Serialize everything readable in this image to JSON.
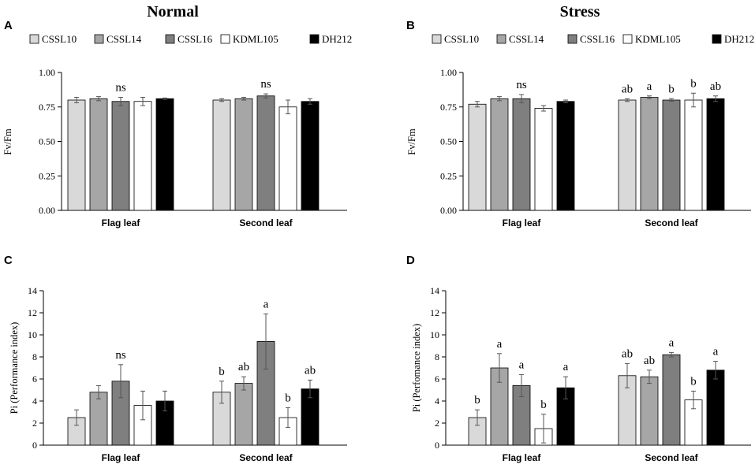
{
  "column_titles": [
    "Normal",
    "Stress"
  ],
  "legend": [
    {
      "name": "CSSL10",
      "color": "#d9d9d9"
    },
    {
      "name": "CSSL14",
      "color": "#a6a6a6"
    },
    {
      "name": "CSSL16",
      "color": "#7f7f7f"
    },
    {
      "name": "KDML105",
      "color": "#ffffff"
    },
    {
      "name": "DH212",
      "color": "#000000"
    }
  ],
  "chart_data": [
    {
      "panel": "A",
      "type": "bar",
      "title": "Normal",
      "ylabel": "Fv/Fm",
      "xlabel": "",
      "ylim": [
        0,
        1.0
      ],
      "yticks": [
        "0.00",
        "0.25",
        "0.50",
        "0.75",
        "1.00"
      ],
      "categories": [
        "Flag leaf",
        "Second leaf"
      ],
      "series": [
        {
          "name": "CSSL10",
          "values": [
            0.8,
            0.8
          ],
          "errors": [
            0.02,
            0.01
          ]
        },
        {
          "name": "CSSL14",
          "values": [
            0.81,
            0.81
          ],
          "errors": [
            0.015,
            0.01
          ]
        },
        {
          "name": "CSSL16",
          "values": [
            0.79,
            0.83
          ],
          "errors": [
            0.03,
            0.015
          ]
        },
        {
          "name": "KDML105",
          "values": [
            0.79,
            0.75
          ],
          "errors": [
            0.03,
            0.05
          ]
        },
        {
          "name": "DH212",
          "values": [
            0.81,
            0.79
          ],
          "errors": [
            0.005,
            0.02
          ]
        }
      ],
      "annotations": [
        {
          "category": 0,
          "series": 2,
          "text": "ns"
        },
        {
          "category": 1,
          "series": 2,
          "text": "ns"
        }
      ]
    },
    {
      "panel": "B",
      "type": "bar",
      "title": "Stress",
      "ylabel": "Fv/Fm",
      "xlabel": "",
      "ylim": [
        0,
        1.0
      ],
      "yticks": [
        "0.00",
        "0.25",
        "0.50",
        "0.75",
        "1.00"
      ],
      "categories": [
        "Flag leaf",
        "Second leaf"
      ],
      "series": [
        {
          "name": "CSSL10",
          "values": [
            0.77,
            0.8
          ],
          "errors": [
            0.02,
            0.01
          ]
        },
        {
          "name": "CSSL14",
          "values": [
            0.81,
            0.82
          ],
          "errors": [
            0.015,
            0.01
          ]
        },
        {
          "name": "CSSL16",
          "values": [
            0.81,
            0.8
          ],
          "errors": [
            0.03,
            0.01
          ]
        },
        {
          "name": "KDML105",
          "values": [
            0.74,
            0.8
          ],
          "errors": [
            0.02,
            0.05
          ]
        },
        {
          "name": "DH212",
          "values": [
            0.79,
            0.81
          ],
          "errors": [
            0.01,
            0.02
          ]
        }
      ],
      "annotations": [
        {
          "category": 0,
          "series": 2,
          "text": "ns"
        },
        {
          "category": 1,
          "series": 0,
          "text": "ab"
        },
        {
          "category": 1,
          "series": 1,
          "text": "a"
        },
        {
          "category": 1,
          "series": 2,
          "text": "b"
        },
        {
          "category": 1,
          "series": 3,
          "text": "b"
        },
        {
          "category": 1,
          "series": 4,
          "text": "ab"
        }
      ]
    },
    {
      "panel": "C",
      "type": "bar",
      "title": "",
      "ylabel": "Pi (Performance index)",
      "xlabel": "",
      "ylim": [
        0,
        14
      ],
      "yticks": [
        "0",
        "2",
        "4",
        "6",
        "8",
        "10",
        "12",
        "14"
      ],
      "categories": [
        "Flag leaf",
        "Second leaf"
      ],
      "series": [
        {
          "name": "CSSL10",
          "values": [
            2.5,
            4.8
          ],
          "errors": [
            0.7,
            1.0
          ]
        },
        {
          "name": "CSSL14",
          "values": [
            4.8,
            5.6
          ],
          "errors": [
            0.6,
            0.6
          ]
        },
        {
          "name": "CSSL16",
          "values": [
            5.8,
            9.4
          ],
          "errors": [
            1.5,
            2.5
          ]
        },
        {
          "name": "KDML105",
          "values": [
            3.6,
            2.5
          ],
          "errors": [
            1.3,
            0.9
          ]
        },
        {
          "name": "DH212",
          "values": [
            4.0,
            5.1
          ],
          "errors": [
            0.9,
            0.8
          ]
        }
      ],
      "annotations": [
        {
          "category": 0,
          "series": 2,
          "text": "ns"
        },
        {
          "category": 1,
          "series": 0,
          "text": "b"
        },
        {
          "category": 1,
          "series": 1,
          "text": "ab"
        },
        {
          "category": 1,
          "series": 2,
          "text": "a"
        },
        {
          "category": 1,
          "series": 3,
          "text": "b"
        },
        {
          "category": 1,
          "series": 4,
          "text": "ab"
        }
      ]
    },
    {
      "panel": "D",
      "type": "bar",
      "title": "",
      "ylabel": "Pi (Perfomance index)",
      "xlabel": "",
      "ylim": [
        0,
        14
      ],
      "yticks": [
        "0",
        "2",
        "4",
        "6",
        "8",
        "10",
        "12",
        "14"
      ],
      "categories": [
        "Flag leaf",
        "Second leaf"
      ],
      "series": [
        {
          "name": "CSSL10",
          "values": [
            2.5,
            6.3
          ],
          "errors": [
            0.7,
            1.1
          ]
        },
        {
          "name": "CSSL14",
          "values": [
            7.0,
            6.2
          ],
          "errors": [
            1.3,
            0.6
          ]
        },
        {
          "name": "CSSL16",
          "values": [
            5.4,
            8.2
          ],
          "errors": [
            1.0,
            0.2
          ]
        },
        {
          "name": "KDML105",
          "values": [
            1.5,
            4.1
          ],
          "errors": [
            1.3,
            0.8
          ]
        },
        {
          "name": "DH212",
          "values": [
            5.2,
            6.8
          ],
          "errors": [
            1.0,
            0.8
          ]
        }
      ],
      "annotations": [
        {
          "category": 0,
          "series": 0,
          "text": "b"
        },
        {
          "category": 0,
          "series": 1,
          "text": "a"
        },
        {
          "category": 0,
          "series": 2,
          "text": "a"
        },
        {
          "category": 0,
          "series": 3,
          "text": "b"
        },
        {
          "category": 0,
          "series": 4,
          "text": "a"
        },
        {
          "category": 1,
          "series": 0,
          "text": "ab"
        },
        {
          "category": 1,
          "series": 1,
          "text": "ab"
        },
        {
          "category": 1,
          "series": 2,
          "text": "a"
        },
        {
          "category": 1,
          "series": 3,
          "text": "b"
        },
        {
          "category": 1,
          "series": 4,
          "text": "a"
        }
      ]
    }
  ]
}
